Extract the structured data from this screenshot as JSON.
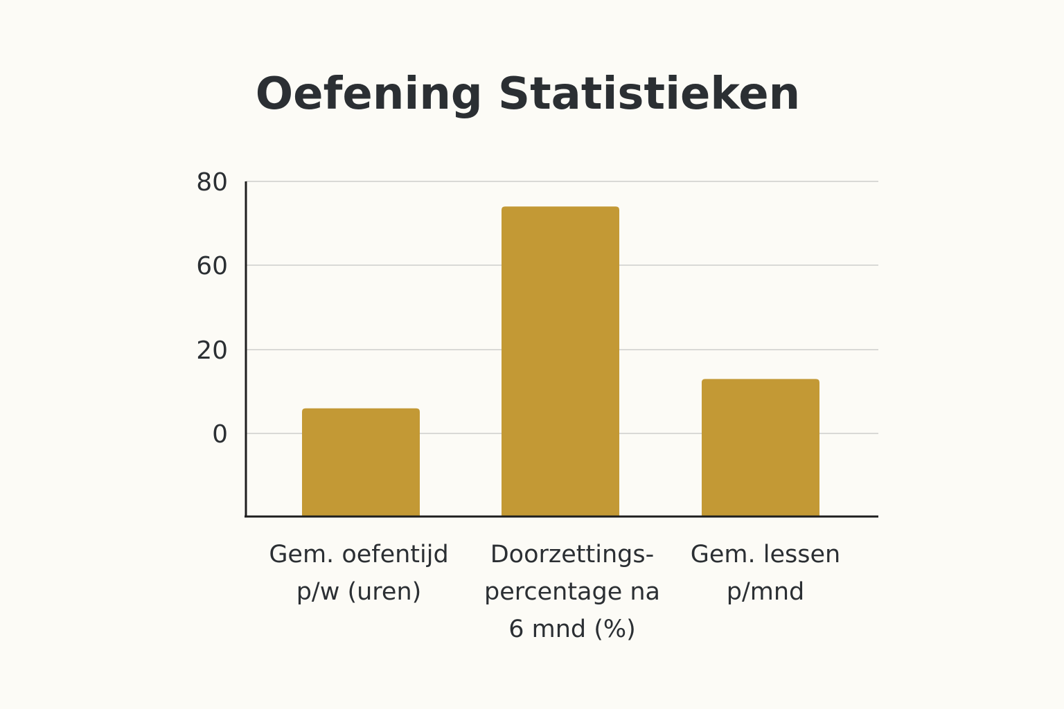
{
  "colors": {
    "background": "#fcfbf6",
    "bar": "#c39935",
    "text": "#2b2f33",
    "grid": "#d9d9d6",
    "axis": "#1e1e1e"
  },
  "chart_data": {
    "type": "bar",
    "title": "Oefening Statistieken",
    "xlabel": "",
    "ylabel": "",
    "y_tick_labels": [
      "0",
      "20",
      "60",
      "80"
    ],
    "grid": true,
    "legend": "none",
    "categories": [
      [
        "Gem. oefentijd",
        "p/w (uren)"
      ],
      [
        "Doorzettings-",
        "percentage na",
        "6 mnd (%)"
      ],
      [
        "Gem. lessen",
        "p/mnd"
      ]
    ],
    "values": [
      6,
      74,
      13
    ]
  }
}
